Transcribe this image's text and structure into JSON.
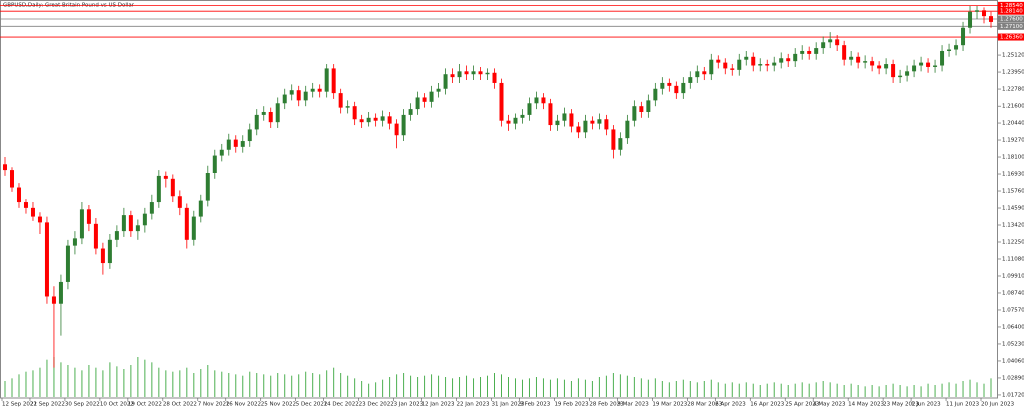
{
  "chart_data": {
    "type": "candlestick",
    "title": "GBPUSD,Daily: Great Britain Pound vs US Dollar",
    "up_color": "#2e7d32",
    "down_color": "#ff0000",
    "volume_color": "#4caf50",
    "ylim": [
      1.0151,
      1.2891
    ],
    "yticks": [
      {
        "value": 1.2512,
        "label": "1.25120"
      },
      {
        "value": 1.2395,
        "label": "1.23950"
      },
      {
        "value": 1.2278,
        "label": "1.22780"
      },
      {
        "value": 1.216,
        "label": "1.21600"
      },
      {
        "value": 1.2044,
        "label": "1.20440"
      },
      {
        "value": 1.1927,
        "label": "1.19270"
      },
      {
        "value": 1.181,
        "label": "1.18100"
      },
      {
        "value": 1.1693,
        "label": "1.16930"
      },
      {
        "value": 1.1576,
        "label": "1.15760"
      },
      {
        "value": 1.1459,
        "label": "1.14590"
      },
      {
        "value": 1.1342,
        "label": "1.13420"
      },
      {
        "value": 1.1225,
        "label": "1.12250"
      },
      {
        "value": 1.1108,
        "label": "1.11080"
      },
      {
        "value": 1.0991,
        "label": "1.09910"
      },
      {
        "value": 1.0874,
        "label": "1.08740"
      },
      {
        "value": 1.0757,
        "label": "1.07570"
      },
      {
        "value": 1.064,
        "label": "1.06400"
      },
      {
        "value": 1.0523,
        "label": "1.05230"
      },
      {
        "value": 1.0406,
        "label": "1.04060"
      },
      {
        "value": 1.0289,
        "label": "1.02890"
      },
      {
        "value": 1.0172,
        "label": "1.01720"
      }
    ],
    "levels": [
      {
        "value": 1.2854,
        "label": "1.28540",
        "color": "#ff0000"
      },
      {
        "value": 1.2814,
        "label": "1.28140",
        "color": "#ff0000"
      },
      {
        "value": 1.276,
        "label": "1.27600",
        "color": "#808080"
      },
      {
        "value": 1.271,
        "label": "1.27100",
        "color": "#808080"
      },
      {
        "value": 1.2636,
        "label": "1.26360",
        "color": "#ff0000"
      }
    ],
    "xticks": [
      {
        "value": 0,
        "label": "12 Sep 2022"
      },
      {
        "value": 4,
        "label": "21 Sep 2022"
      },
      {
        "value": 9,
        "label": "30 Sep 2022"
      },
      {
        "value": 14,
        "label": "10 Oct 2022"
      },
      {
        "value": 18,
        "label": "19 Oct 2022"
      },
      {
        "value": 23,
        "label": "28 Oct 2022"
      },
      {
        "value": 28,
        "label": "7 Nov 2022"
      },
      {
        "value": 32,
        "label": "16 Nov 2022"
      },
      {
        "value": 37,
        "label": "25 Nov 2022"
      },
      {
        "value": 42,
        "label": "5 Dec 2022"
      },
      {
        "value": 46,
        "label": "14 Dec 2022"
      },
      {
        "value": 51,
        "label": "23 Dec 2022"
      },
      {
        "value": 56,
        "label": "3 Jan 2023"
      },
      {
        "value": 60,
        "label": "12 Jan 2023"
      },
      {
        "value": 65,
        "label": "22 Jan 2023"
      },
      {
        "value": 70,
        "label": "31 Jan 2023"
      },
      {
        "value": 74,
        "label": "9 Feb 2023"
      },
      {
        "value": 79,
        "label": "19 Feb 2023"
      },
      {
        "value": 84,
        "label": "28 Feb 2023"
      },
      {
        "value": 88,
        "label": "9 Mar 2023"
      },
      {
        "value": 93,
        "label": "19 Mar 2023"
      },
      {
        "value": 98,
        "label": "28 Mar 2023"
      },
      {
        "value": 102,
        "label": "6 Apr 2023"
      },
      {
        "value": 107,
        "label": "16 Apr 2023"
      },
      {
        "value": 112,
        "label": "25 Apr 2023"
      },
      {
        "value": 116,
        "label": "4 May 2023"
      },
      {
        "value": 121,
        "label": "14 May 2023"
      },
      {
        "value": 126,
        "label": "23 May 2023"
      },
      {
        "value": 130,
        "label": "1 Jun 2023"
      },
      {
        "value": 135,
        "label": "11 Jun 2023"
      },
      {
        "value": 140,
        "label": "20 Jun 2023"
      }
    ],
    "ohlc": [
      [
        1.176,
        1.181,
        1.168,
        1.172
      ],
      [
        1.172,
        1.174,
        1.157,
        1.16
      ],
      [
        1.16,
        1.163,
        1.146,
        1.15
      ],
      [
        1.15,
        1.152,
        1.142,
        1.146
      ],
      [
        1.146,
        1.15,
        1.137,
        1.14
      ],
      [
        1.14,
        1.143,
        1.128,
        1.136
      ],
      [
        1.136,
        1.14,
        1.08,
        1.085
      ],
      [
        1.085,
        1.092,
        1.036,
        1.08
      ],
      [
        1.08,
        1.1,
        1.058,
        1.095
      ],
      [
        1.095,
        1.124,
        1.09,
        1.12
      ],
      [
        1.12,
        1.13,
        1.114,
        1.125
      ],
      [
        1.125,
        1.15,
        1.121,
        1.145
      ],
      [
        1.145,
        1.148,
        1.13,
        1.135
      ],
      [
        1.135,
        1.139,
        1.114,
        1.118
      ],
      [
        1.118,
        1.122,
        1.1,
        1.108
      ],
      [
        1.108,
        1.128,
        1.104,
        1.124
      ],
      [
        1.124,
        1.134,
        1.119,
        1.13
      ],
      [
        1.13,
        1.146,
        1.126,
        1.141
      ],
      [
        1.141,
        1.144,
        1.126,
        1.13
      ],
      [
        1.13,
        1.138,
        1.124,
        1.134
      ],
      [
        1.134,
        1.146,
        1.129,
        1.142
      ],
      [
        1.142,
        1.155,
        1.138,
        1.15
      ],
      [
        1.15,
        1.172,
        1.146,
        1.168
      ],
      [
        1.168,
        1.171,
        1.16,
        1.166
      ],
      [
        1.166,
        1.169,
        1.15,
        1.154
      ],
      [
        1.154,
        1.158,
        1.141,
        1.146
      ],
      [
        1.146,
        1.149,
        1.118,
        1.124
      ],
      [
        1.124,
        1.144,
        1.12,
        1.14
      ],
      [
        1.14,
        1.155,
        1.136,
        1.151
      ],
      [
        1.151,
        1.175,
        1.147,
        1.17
      ],
      [
        1.17,
        1.186,
        1.166,
        1.182
      ],
      [
        1.182,
        1.19,
        1.178,
        1.186
      ],
      [
        1.186,
        1.197,
        1.182,
        1.193
      ],
      [
        1.193,
        1.196,
        1.184,
        1.188
      ],
      [
        1.188,
        1.196,
        1.184,
        1.192
      ],
      [
        1.192,
        1.204,
        1.188,
        1.2
      ],
      [
        1.2,
        1.214,
        1.196,
        1.21
      ],
      [
        1.21,
        1.216,
        1.206,
        1.212
      ],
      [
        1.212,
        1.215,
        1.201,
        1.205
      ],
      [
        1.205,
        1.222,
        1.201,
        1.218
      ],
      [
        1.218,
        1.228,
        1.214,
        1.224
      ],
      [
        1.224,
        1.231,
        1.22,
        1.227
      ],
      [
        1.227,
        1.23,
        1.216,
        1.22
      ],
      [
        1.22,
        1.23,
        1.216,
        1.226
      ],
      [
        1.226,
        1.232,
        1.222,
        1.228
      ],
      [
        1.228,
        1.231,
        1.222,
        1.226
      ],
      [
        1.226,
        1.245,
        1.222,
        1.242
      ],
      [
        1.242,
        1.245,
        1.221,
        1.225
      ],
      [
        1.225,
        1.228,
        1.211,
        1.215
      ],
      [
        1.215,
        1.22,
        1.211,
        1.216
      ],
      [
        1.216,
        1.219,
        1.203,
        1.207
      ],
      [
        1.207,
        1.21,
        1.201,
        1.205
      ],
      [
        1.205,
        1.212,
        1.202,
        1.208
      ],
      [
        1.208,
        1.211,
        1.202,
        1.206
      ],
      [
        1.206,
        1.213,
        1.202,
        1.209
      ],
      [
        1.209,
        1.212,
        1.2,
        1.204
      ],
      [
        1.204,
        1.207,
        1.187,
        1.196
      ],
      [
        1.196,
        1.214,
        1.192,
        1.21
      ],
      [
        1.21,
        1.218,
        1.206,
        1.214
      ],
      [
        1.214,
        1.226,
        1.21,
        1.222
      ],
      [
        1.222,
        1.225,
        1.215,
        1.219
      ],
      [
        1.219,
        1.23,
        1.215,
        1.226
      ],
      [
        1.226,
        1.232,
        1.222,
        1.228
      ],
      [
        1.228,
        1.242,
        1.224,
        1.238
      ],
      [
        1.238,
        1.242,
        1.232,
        1.236
      ],
      [
        1.236,
        1.245,
        1.232,
        1.24
      ],
      [
        1.24,
        1.244,
        1.234,
        1.238
      ],
      [
        1.238,
        1.244,
        1.234,
        1.24
      ],
      [
        1.24,
        1.243,
        1.234,
        1.238
      ],
      [
        1.238,
        1.242,
        1.234,
        1.239
      ],
      [
        1.239,
        1.242,
        1.228,
        1.232
      ],
      [
        1.232,
        1.235,
        1.202,
        1.206
      ],
      [
        1.206,
        1.21,
        1.199,
        1.204
      ],
      [
        1.204,
        1.211,
        1.2,
        1.208
      ],
      [
        1.208,
        1.214,
        1.204,
        1.21
      ],
      [
        1.21,
        1.222,
        1.206,
        1.218
      ],
      [
        1.218,
        1.226,
        1.214,
        1.222
      ],
      [
        1.222,
        1.225,
        1.214,
        1.218
      ],
      [
        1.218,
        1.221,
        1.199,
        1.203
      ],
      [
        1.203,
        1.21,
        1.199,
        1.206
      ],
      [
        1.206,
        1.215,
        1.202,
        1.211
      ],
      [
        1.211,
        1.214,
        1.198,
        1.202
      ],
      [
        1.202,
        1.205,
        1.194,
        1.198
      ],
      [
        1.198,
        1.21,
        1.194,
        1.206
      ],
      [
        1.206,
        1.209,
        1.2,
        1.204
      ],
      [
        1.204,
        1.211,
        1.2,
        1.207
      ],
      [
        1.207,
        1.21,
        1.196,
        1.2
      ],
      [
        1.2,
        1.203,
        1.18,
        1.186
      ],
      [
        1.186,
        1.198,
        1.182,
        1.194
      ],
      [
        1.194,
        1.21,
        1.19,
        1.206
      ],
      [
        1.206,
        1.22,
        1.202,
        1.216
      ],
      [
        1.216,
        1.219,
        1.208,
        1.212
      ],
      [
        1.212,
        1.224,
        1.208,
        1.22
      ],
      [
        1.22,
        1.232,
        1.216,
        1.228
      ],
      [
        1.228,
        1.236,
        1.224,
        1.232
      ],
      [
        1.232,
        1.235,
        1.226,
        1.23
      ],
      [
        1.23,
        1.233,
        1.221,
        1.225
      ],
      [
        1.225,
        1.236,
        1.221,
        1.232
      ],
      [
        1.232,
        1.24,
        1.228,
        1.236
      ],
      [
        1.236,
        1.244,
        1.232,
        1.24
      ],
      [
        1.24,
        1.243,
        1.234,
        1.238
      ],
      [
        1.238,
        1.252,
        1.234,
        1.248
      ],
      [
        1.248,
        1.251,
        1.242,
        1.246
      ],
      [
        1.246,
        1.249,
        1.238,
        1.242
      ],
      [
        1.242,
        1.245,
        1.237,
        1.241
      ],
      [
        1.241,
        1.252,
        1.237,
        1.248
      ],
      [
        1.248,
        1.254,
        1.244,
        1.25
      ],
      [
        1.25,
        1.253,
        1.24,
        1.244
      ],
      [
        1.244,
        1.249,
        1.24,
        1.245
      ],
      [
        1.245,
        1.248,
        1.24,
        1.244
      ],
      [
        1.244,
        1.25,
        1.24,
        1.246
      ],
      [
        1.246,
        1.253,
        1.242,
        1.249
      ],
      [
        1.249,
        1.252,
        1.243,
        1.247
      ],
      [
        1.247,
        1.256,
        1.243,
        1.252
      ],
      [
        1.252,
        1.258,
        1.248,
        1.254
      ],
      [
        1.254,
        1.257,
        1.248,
        1.252
      ],
      [
        1.252,
        1.26,
        1.248,
        1.256
      ],
      [
        1.256,
        1.264,
        1.252,
        1.26
      ],
      [
        1.26,
        1.267,
        1.256,
        1.262
      ],
      [
        1.262,
        1.265,
        1.254,
        1.258
      ],
      [
        1.258,
        1.261,
        1.244,
        1.248
      ],
      [
        1.248,
        1.254,
        1.244,
        1.25
      ],
      [
        1.25,
        1.253,
        1.242,
        1.246
      ],
      [
        1.246,
        1.251,
        1.242,
        1.247
      ],
      [
        1.247,
        1.25,
        1.24,
        1.244
      ],
      [
        1.244,
        1.247,
        1.238,
        1.242
      ],
      [
        1.242,
        1.249,
        1.238,
        1.245
      ],
      [
        1.245,
        1.248,
        1.232,
        1.236
      ],
      [
        1.236,
        1.241,
        1.232,
        1.237
      ],
      [
        1.237,
        1.244,
        1.233,
        1.24
      ],
      [
        1.24,
        1.248,
        1.236,
        1.244
      ],
      [
        1.244,
        1.25,
        1.24,
        1.246
      ],
      [
        1.246,
        1.249,
        1.239,
        1.243
      ],
      [
        1.243,
        1.248,
        1.239,
        1.244
      ],
      [
        1.244,
        1.258,
        1.24,
        1.254
      ],
      [
        1.254,
        1.259,
        1.25,
        1.255
      ],
      [
        1.255,
        1.262,
        1.251,
        1.258
      ],
      [
        1.258,
        1.274,
        1.254,
        1.27
      ],
      [
        1.27,
        1.285,
        1.266,
        1.281
      ],
      [
        1.281,
        1.285,
        1.276,
        1.282
      ],
      [
        1.282,
        1.284,
        1.273,
        1.278
      ],
      [
        1.278,
        1.281,
        1.27,
        1.274
      ]
    ],
    "volume": [
      60000,
      70000,
      85000,
      95000,
      100000,
      110000,
      140000,
      150000,
      130000,
      120000,
      110000,
      100000,
      120000,
      110000,
      100000,
      130000,
      115000,
      105000,
      120000,
      150000,
      140000,
      130000,
      110000,
      100000,
      95000,
      100000,
      110000,
      90000,
      105000,
      120000,
      100000,
      95000,
      90000,
      85000,
      80000,
      95000,
      90000,
      85000,
      80000,
      90000,
      85000,
      80000,
      85000,
      95000,
      90000,
      85000,
      100000,
      110000,
      90000,
      80000,
      70000,
      60000,
      50000,
      55000,
      65000,
      75000,
      85000,
      90000,
      80000,
      75000,
      80000,
      85000,
      80000,
      75000,
      70000,
      75000,
      80000,
      70000,
      75000,
      80000,
      90000,
      85000,
      75000,
      70000,
      65000,
      70000,
      75000,
      70000,
      65000,
      70000,
      65000,
      60000,
      70000,
      65000,
      60000,
      75000,
      80000,
      90000,
      85000,
      80000,
      75000,
      70000,
      65000,
      70000,
      60000,
      55000,
      60000,
      65000,
      60000,
      55000,
      60000,
      65000,
      55000,
      50000,
      55000,
      50000,
      55000,
      50000,
      45000,
      50000,
      55000,
      50000,
      45000,
      50000,
      55000,
      50000,
      55000,
      60000,
      55000,
      50000,
      45000,
      50000,
      45000,
      40000,
      45000,
      40000,
      45000,
      50000,
      45000,
      40000,
      45000,
      40000,
      50000,
      45000,
      50000,
      55000,
      50000,
      60000,
      65000,
      55000,
      50000,
      70000
    ]
  }
}
